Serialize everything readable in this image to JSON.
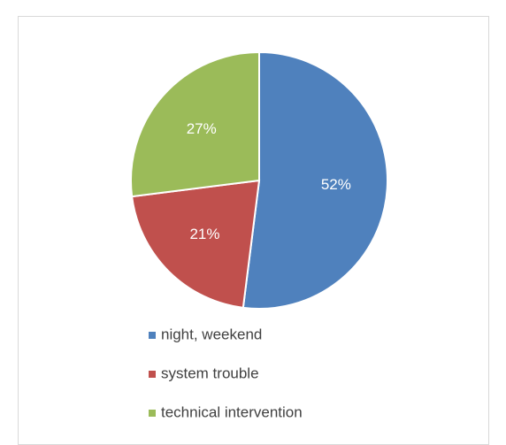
{
  "chart_data": {
    "type": "pie",
    "categories": [
      "night, weekend",
      "system trouble",
      "technical intervention"
    ],
    "values": [
      52,
      21,
      27
    ],
    "value_labels": [
      "52%",
      "21%",
      "27%"
    ],
    "colors": [
      "#4f81bd",
      "#c0504d",
      "#9bbb59"
    ],
    "legend": "bottom"
  }
}
